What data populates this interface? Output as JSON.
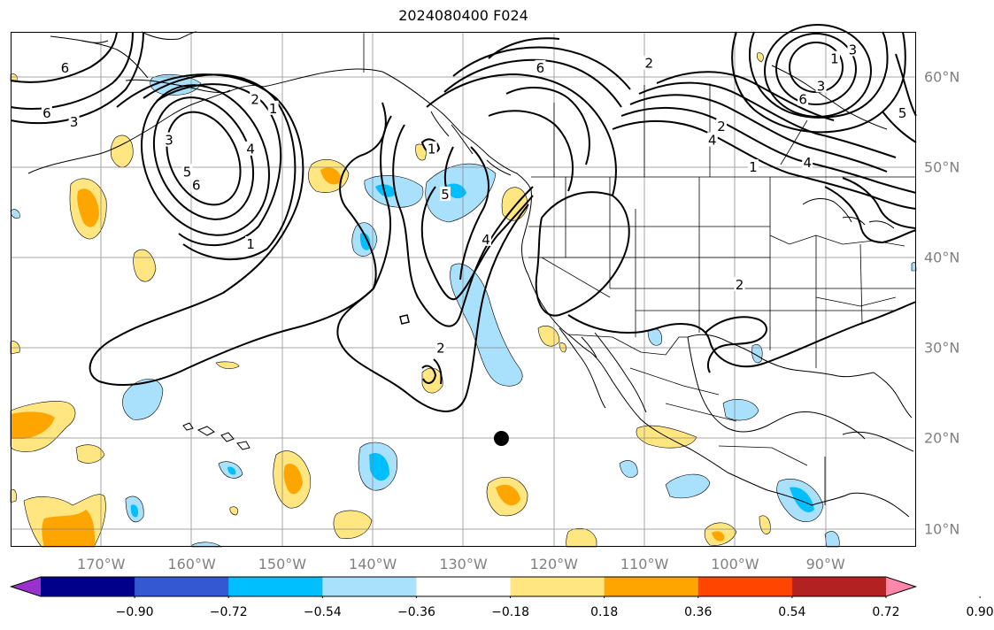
{
  "title": "2024080400 F024",
  "map": {
    "projection": "equirectangular",
    "extent": {
      "lon_min": -180,
      "lon_max": -80,
      "lat_min": 8,
      "lat_max": 65
    },
    "lon_ticks": [
      {
        "value": -170,
        "label": "170°W"
      },
      {
        "value": -160,
        "label": "160°W"
      },
      {
        "value": -150,
        "label": "150°W"
      },
      {
        "value": -140,
        "label": "140°W"
      },
      {
        "value": -130,
        "label": "130°W"
      },
      {
        "value": -120,
        "label": "120°W"
      },
      {
        "value": -110,
        "label": "110°W"
      },
      {
        "value": -100,
        "label": "100°W"
      },
      {
        "value": -90,
        "label": "90°W"
      }
    ],
    "lat_ticks": [
      {
        "value": 10,
        "label": "10°N"
      },
      {
        "value": 20,
        "label": "20°N"
      },
      {
        "value": 30,
        "label": "30°N"
      },
      {
        "value": 40,
        "label": "40°N"
      },
      {
        "value": 50,
        "label": "50°N"
      },
      {
        "value": 60,
        "label": "60°N"
      }
    ],
    "gridlines": true,
    "marker": {
      "lon": -125.8,
      "lat": 20.0,
      "color": "#000000"
    },
    "contour_labels": [
      {
        "text": "6",
        "lon": -176.0,
        "lat": 56.0
      },
      {
        "text": "3",
        "lon": -173.0,
        "lat": 55.0
      },
      {
        "text": "6",
        "lon": -174.0,
        "lat": 61.0
      },
      {
        "text": "2",
        "lon": -153.0,
        "lat": 57.5
      },
      {
        "text": "1",
        "lon": -151.0,
        "lat": 56.5
      },
      {
        "text": "4",
        "lon": -153.5,
        "lat": 52.0
      },
      {
        "text": "3",
        "lon": -162.5,
        "lat": 53.0
      },
      {
        "text": "5",
        "lon": -160.5,
        "lat": 49.5
      },
      {
        "text": "6",
        "lon": -159.5,
        "lat": 48.0
      },
      {
        "text": "1",
        "lon": -153.5,
        "lat": 41.5
      },
      {
        "text": "1",
        "lon": -133.5,
        "lat": 52.0
      },
      {
        "text": "5",
        "lon": -132.0,
        "lat": 47.0
      },
      {
        "text": "4",
        "lon": -127.5,
        "lat": 42.0
      },
      {
        "text": "6",
        "lon": -121.5,
        "lat": 61.0
      },
      {
        "text": "2",
        "lon": -109.5,
        "lat": 61.5
      },
      {
        "text": "2",
        "lon": -101.5,
        "lat": 54.5
      },
      {
        "text": "4",
        "lon": -102.5,
        "lat": 53.0
      },
      {
        "text": "1",
        "lon": -98.0,
        "lat": 50.0
      },
      {
        "text": "4",
        "lon": -92.0,
        "lat": 50.5
      },
      {
        "text": "2",
        "lon": -99.5,
        "lat": 37.0
      },
      {
        "text": "1",
        "lon": -89.0,
        "lat": 62.0
      },
      {
        "text": "3",
        "lon": -87.0,
        "lat": 63.0
      },
      {
        "text": "3",
        "lon": -90.5,
        "lat": 59.0
      },
      {
        "text": "6",
        "lon": -92.5,
        "lat": 57.5
      },
      {
        "text": "5",
        "lon": -81.5,
        "lat": 56.0
      },
      {
        "text": "2",
        "lon": -132.5,
        "lat": 30.0
      }
    ]
  },
  "colorbar": {
    "colors": [
      "#9932cc",
      "#00008b",
      "#3358d1",
      "#00bfff",
      "#a9e0fb",
      "#ffffff",
      "#ffe680",
      "#ffa500",
      "#ff4500",
      "#b22222",
      "#ff88aa"
    ],
    "labels": [
      "−0.90",
      "−0.72",
      "−0.54",
      "−0.36",
      "−0.18",
      "0.18",
      "0.36",
      "0.54",
      "0.72",
      "0.90"
    ]
  }
}
